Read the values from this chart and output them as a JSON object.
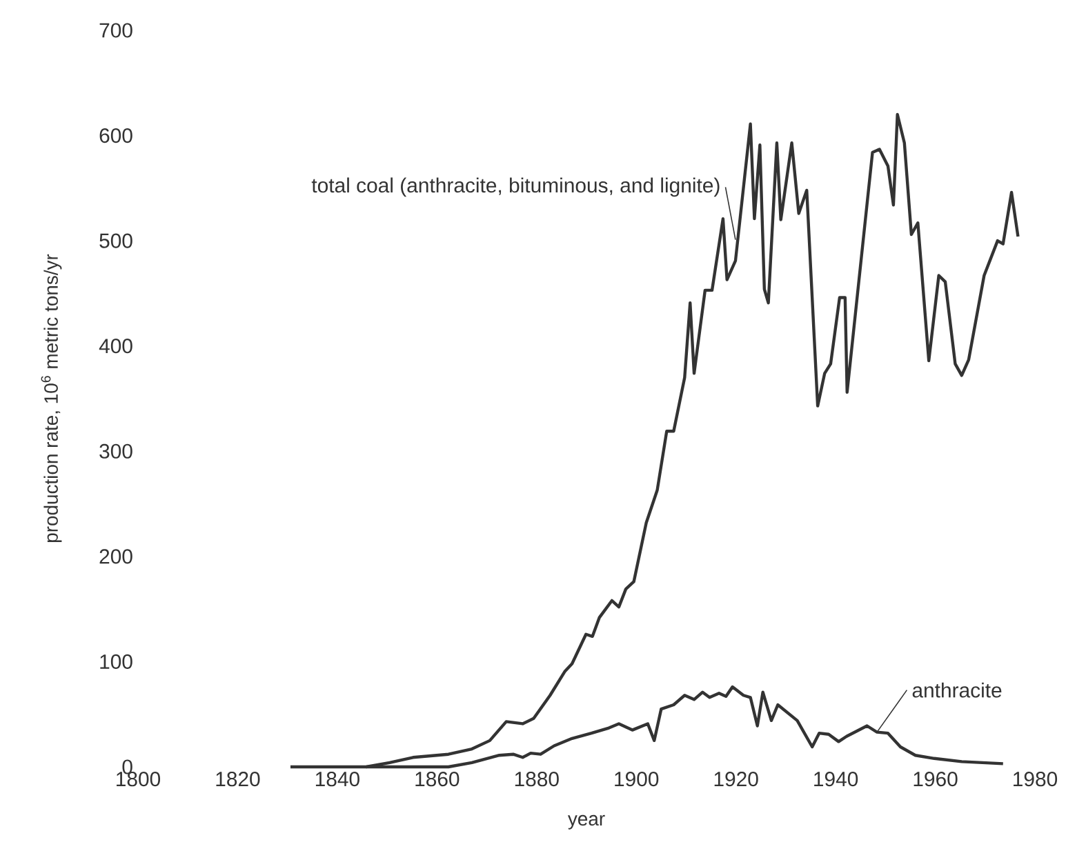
{
  "chart_data": {
    "type": "line",
    "xlabel": "year",
    "ylabel": "production rate, 10$^{6}$ metric tons/yr",
    "xlim": [
      1800,
      1980
    ],
    "ylim": [
      0,
      700
    ],
    "xticks": [
      1800,
      1820,
      1840,
      1860,
      1880,
      1900,
      1920,
      1940,
      1960,
      1980
    ],
    "yticks": [
      0,
      100,
      200,
      300,
      400,
      500,
      600,
      700
    ],
    "legend": false,
    "marker": "none",
    "line_style": "solid",
    "series": [
      {
        "name": "total coal (anthracite, bituminous, and lignite)",
        "color": "#333333",
        "x": [
          1830.6,
          1845.8,
          1850.5,
          1855.2,
          1862.3,
          1867,
          1870.6,
          1873.9,
          1877.2,
          1879.4,
          1882.7,
          1885.7,
          1887.1,
          1889.9,
          1891.2,
          1892.6,
          1895.1,
          1896.5,
          1897.9,
          1899.5,
          1902,
          1904.2,
          1906.1,
          1907.5,
          1909.7,
          1910.8,
          1911.6,
          1913.8,
          1915.2,
          1917.4,
          1918.2,
          1919.9,
          1922.9,
          1923.7,
          1924.8,
          1925.7,
          1926.5,
          1928.2,
          1929,
          1931.2,
          1932.6,
          1934.2,
          1936.4,
          1937.8,
          1939,
          1940.8,
          1941.9,
          1942.3,
          1947.4,
          1948.8,
          1950.5,
          1951.6,
          1952.4,
          1953.8,
          1955.2,
          1956.5,
          1958.7,
          1960.7,
          1962,
          1964,
          1965.3,
          1966.7,
          1969.8,
          1972.5,
          1973.6,
          1975.3,
          1976.6
        ],
        "values": [
          0,
          0,
          4,
          9,
          12,
          17,
          25,
          43,
          41,
          46,
          68,
          91,
          98,
          126,
          124,
          142,
          158,
          152,
          169,
          176,
          232,
          263,
          319,
          319,
          370,
          441,
          374,
          453,
          453,
          521,
          463,
          481,
          611,
          521,
          591,
          454,
          441,
          593,
          520,
          593,
          526,
          548,
          343,
          374,
          383,
          446,
          446,
          356,
          584,
          587,
          571,
          534,
          620,
          593,
          506,
          517,
          386,
          467,
          461,
          383,
          372,
          387,
          467,
          500,
          497,
          546,
          504
        ]
      },
      {
        "name": "anthracite",
        "color": "#333333",
        "x": [
          1845.8,
          1862.3,
          1867,
          1872.5,
          1875.3,
          1877.2,
          1878.8,
          1880.8,
          1883.5,
          1887.1,
          1891,
          1894.5,
          1896.5,
          1899.2,
          1902.3,
          1903.6,
          1905,
          1907.5,
          1909.7,
          1911.6,
          1913.3,
          1914.7,
          1916.6,
          1918,
          1919.3,
          1921.5,
          1922.9,
          1924.3,
          1925.4,
          1927.1,
          1928.4,
          1932.3,
          1935.3,
          1936.7,
          1938.6,
          1940.6,
          1942.2,
          1946.3,
          1948.3,
          1950.5,
          1953,
          1956,
          1959.8,
          1965.3,
          1973.6
        ],
        "values": [
          0,
          0,
          4,
          11,
          12,
          9,
          13,
          12,
          20,
          27,
          32,
          37,
          41,
          35,
          41,
          25,
          55,
          59,
          68,
          64,
          71,
          66,
          70,
          67,
          76,
          68,
          66,
          39,
          71,
          44,
          59,
          44,
          19,
          32,
          31,
          24,
          29,
          39,
          33,
          32,
          19,
          11,
          8,
          5,
          3
        ]
      }
    ]
  }
}
